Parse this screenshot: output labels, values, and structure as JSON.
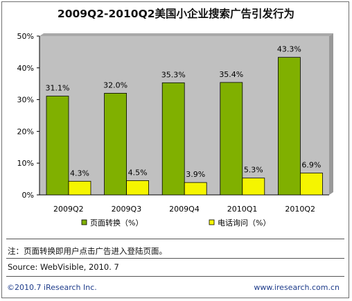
{
  "chart_data": {
    "type": "bar",
    "title": "2009Q2-2010Q2美国小企业搜索广告引发行为",
    "categories": [
      "2009Q2",
      "2009Q3",
      "2009Q4",
      "2010Q1",
      "2010Q2"
    ],
    "series": [
      {
        "name": "页面转换（%）",
        "values": [
          31.1,
          32.0,
          35.3,
          35.4,
          43.3
        ],
        "labels": [
          "31.1%",
          "32.0%",
          "35.3%",
          "35.4%",
          "43.3%"
        ],
        "color": "#80b000"
      },
      {
        "name": "电话询问（%）",
        "values": [
          4.3,
          4.5,
          3.9,
          5.3,
          6.9
        ],
        "labels": [
          "4.3%",
          "4.5%",
          "3.9%",
          "5.3%",
          "6.9%"
        ],
        "color": "#f5f500"
      }
    ],
    "yticks": [
      "0%",
      "10%",
      "20%",
      "30%",
      "40%",
      "50%"
    ],
    "ylim": [
      0,
      50
    ],
    "grid": false,
    "legend": "bottom",
    "plot_background": "#c0c0c0"
  },
  "note": "注：页面转换即用户点击广告进入登陆页面。",
  "source": "Source: WebVisible, 2010. 7",
  "copyright": "©2010.7 iResearch Inc.",
  "website": "www.iresearch.com.cn"
}
